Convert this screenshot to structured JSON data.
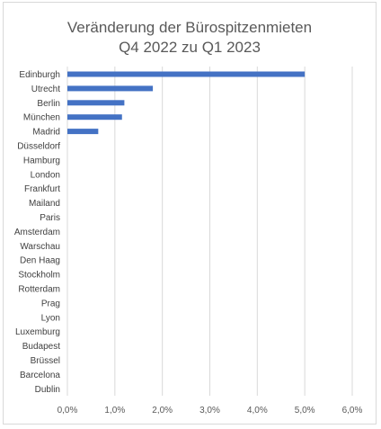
{
  "chart_data": {
    "type": "bar",
    "orientation": "horizontal",
    "title_line1": "Veränderung der Bürospitzenmieten",
    "title_line2": "Q4 2022 zu Q1 2023",
    "categories": [
      "Edinburgh",
      "Utrecht",
      "Berlin",
      "München",
      "Madrid",
      "Düsseldorf",
      "Hamburg",
      "London",
      "Frankfurt",
      "Mailand",
      "Paris",
      "Amsterdam",
      "Warschau",
      "Den Haag",
      "Stockholm",
      "Rotterdam",
      "Prag",
      "Lyon",
      "Luxemburg",
      "Budapest",
      "Brüssel",
      "Barcelona",
      "Dublin"
    ],
    "values": [
      5.0,
      1.8,
      1.2,
      1.15,
      0.65,
      0,
      0,
      0,
      0,
      0,
      0,
      0,
      0,
      0,
      0,
      0,
      0,
      0,
      0,
      0,
      0,
      0,
      0
    ],
    "xlim": [
      0,
      6
    ],
    "xticks": [
      0,
      1,
      2,
      3,
      4,
      5,
      6
    ],
    "xtick_labels": [
      "0,0%",
      "1,0%",
      "2,0%",
      "3,0%",
      "4,0%",
      "5,0%",
      "6,0%"
    ],
    "bar_color": "#4472c4",
    "grid": true,
    "legend": "none"
  }
}
